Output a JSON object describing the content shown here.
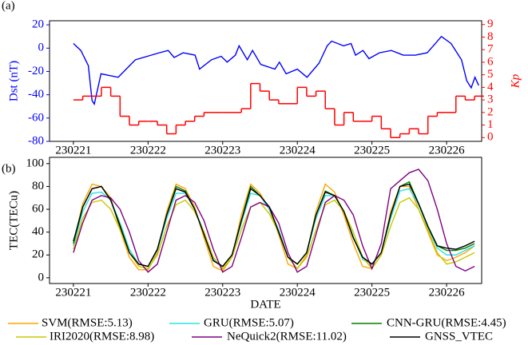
{
  "chart_data": [
    {
      "type": "line",
      "panel_label": "(a)",
      "ylabel": "Dst (nT)",
      "y2label": "Kp",
      "ycolor": "blue",
      "y2color": "red",
      "xlim": [
        230220.68,
        230226.47
      ],
      "xticks": [
        230221,
        230222,
        230223,
        230224,
        230225,
        230226
      ],
      "ylim": [
        -80,
        23.5
      ],
      "yticks": [
        -80,
        -60,
        -40,
        -20,
        0,
        20
      ],
      "y2lim": [
        -0.3,
        9.3
      ],
      "y2ticks": [
        0,
        1,
        2,
        3,
        4,
        5,
        6,
        7,
        8,
        9
      ],
      "series": [
        {
          "color": "blue",
          "x": [
            230221,
            230221.1,
            230221.2,
            230221.25,
            230221.28,
            230221.37,
            230221.6,
            230221.83,
            230222.15,
            230222.27,
            230222.35,
            230222.47,
            230222.63,
            230222.69,
            230222.85,
            230222.98,
            230223.06,
            230223.17,
            230223.22,
            230223.33,
            230223.4,
            230223.51,
            230223.7,
            230223.76,
            230223.85,
            230224,
            230224.13,
            230224.29,
            230224.4,
            230224.46,
            230224.62,
            230224.72,
            230224.78,
            230224.88,
            230224.96,
            230225.1,
            230225.26,
            230225.42,
            230225.58,
            230225.74,
            230225.85,
            230225.93,
            230226.06,
            230226.2,
            230226.27,
            230226.33,
            230226.38,
            230226.43
          ],
          "values": [
            4,
            -2,
            -15,
            -45,
            -48,
            -22,
            -25,
            -10,
            -4,
            -2,
            -8,
            -4,
            -6,
            -18,
            -10,
            -7,
            -12,
            -6,
            2,
            -10,
            -2,
            -14,
            -18,
            -12,
            -22,
            -18,
            -25,
            -13,
            2,
            6,
            2,
            4,
            -6,
            -2,
            -9,
            -4,
            -2,
            -6,
            -6,
            -4,
            4,
            10,
            4,
            -10,
            -28,
            -34,
            -25,
            -32
          ]
        },
        {
          "color": "red",
          "axis": "y2",
          "step": true,
          "x": [
            230221,
            230221.125,
            230221.25,
            230221.375,
            230221.5,
            230221.625,
            230221.75,
            230221.875,
            230222,
            230222.125,
            230222.25,
            230222.375,
            230222.5,
            230222.625,
            230222.75,
            230222.875,
            230223,
            230223.125,
            230223.25,
            230223.375,
            230223.5,
            230223.625,
            230223.75,
            230223.875,
            230224,
            230224.125,
            230224.25,
            230224.375,
            230224.5,
            230224.625,
            230224.75,
            230224.875,
            230225,
            230225.125,
            230225.25,
            230225.375,
            230225.5,
            230225.625,
            230225.75,
            230225.875,
            230226,
            230226.125,
            230226.25,
            230226.375
          ],
          "values": [
            3,
            3.3,
            3.3,
            4,
            3.3,
            1.7,
            1,
            1.3,
            1.3,
            1,
            0.3,
            1,
            1.3,
            1.7,
            2,
            2,
            2,
            2,
            2.3,
            4.3,
            3.7,
            3,
            2.7,
            2.7,
            4,
            3.3,
            3.7,
            2.3,
            1,
            2,
            1.3,
            1.3,
            1.7,
            0.7,
            0,
            0.3,
            0.7,
            0.3,
            1.7,
            2,
            2,
            3.3,
            3,
            3.3
          ]
        }
      ]
    },
    {
      "type": "line",
      "panel_label": "(b)",
      "xlabel": "DATE",
      "ylabel": "TEC(TECu)",
      "ycolor": "black",
      "legend": "bottom",
      "xlim": [
        230220.68,
        230226.47
      ],
      "xticks": [
        230221,
        230222,
        230223,
        230224,
        230225,
        230226
      ],
      "ylim": [
        -5,
        105.5
      ],
      "yticks": [
        0,
        20,
        40,
        60,
        80,
        100
      ],
      "x": [
        230221,
        230221.125,
        230221.25,
        230221.375,
        230221.5,
        230221.625,
        230221.75,
        230221.875,
        230222,
        230222.125,
        230222.25,
        230222.375,
        230222.5,
        230222.625,
        230222.75,
        230222.875,
        230223,
        230223.125,
        230223.25,
        230223.375,
        230223.5,
        230223.625,
        230223.75,
        230223.875,
        230224,
        230224.125,
        230224.25,
        230224.375,
        230224.5,
        230224.625,
        230224.75,
        230224.875,
        230225,
        230225.125,
        230225.25,
        230225.375,
        230225.5,
        230225.625,
        230225.75,
        230225.875,
        230226,
        230226.125,
        230226.25,
        230226.375
      ],
      "series": [
        {
          "name": "SVM(RMSE:5.13)",
          "color": "#ffa500",
          "values": [
            30,
            65,
            82,
            80,
            70,
            42,
            18,
            7,
            7,
            22,
            58,
            82,
            78,
            62,
            35,
            10,
            6,
            18,
            55,
            82,
            74,
            60,
            38,
            12,
            8,
            20,
            58,
            82,
            75,
            55,
            30,
            10,
            8,
            20,
            58,
            80,
            80,
            60,
            40,
            20,
            15,
            18,
            22,
            28
          ]
        },
        {
          "name": "GRU(RMSE:5.07)",
          "color": "#30e0e0",
          "values": [
            28,
            58,
            74,
            75,
            68,
            48,
            25,
            12,
            10,
            24,
            52,
            74,
            74,
            60,
            40,
            16,
            10,
            20,
            48,
            74,
            72,
            60,
            42,
            18,
            12,
            22,
            52,
            72,
            72,
            58,
            36,
            16,
            12,
            22,
            52,
            76,
            78,
            64,
            44,
            26,
            20,
            20,
            24,
            28
          ]
        },
        {
          "name": "CNN-GRU(RMSE:4.45)",
          "color": "#008000",
          "values": [
            30,
            62,
            78,
            80,
            68,
            46,
            22,
            12,
            10,
            25,
            55,
            80,
            76,
            60,
            38,
            15,
            10,
            20,
            50,
            80,
            72,
            62,
            40,
            18,
            12,
            22,
            55,
            76,
            72,
            58,
            35,
            18,
            12,
            22,
            55,
            80,
            84,
            65,
            45,
            28,
            24,
            24,
            26,
            30
          ]
        },
        {
          "name": "IRI2020(RMSE:8.98)",
          "color": "#c8c800",
          "values": [
            25,
            52,
            66,
            68,
            60,
            42,
            22,
            10,
            8,
            20,
            45,
            64,
            68,
            58,
            40,
            18,
            8,
            18,
            42,
            62,
            66,
            56,
            40,
            18,
            8,
            18,
            42,
            64,
            68,
            58,
            40,
            18,
            8,
            20,
            45,
            66,
            70,
            60,
            42,
            22,
            12,
            14,
            18,
            22
          ]
        },
        {
          "name": "NeQuick2(RMSE:11.02)",
          "color": "#800080",
          "values": [
            22,
            48,
            68,
            72,
            70,
            60,
            40,
            15,
            5,
            12,
            40,
            68,
            72,
            66,
            50,
            25,
            5,
            10,
            35,
            62,
            66,
            62,
            48,
            22,
            5,
            10,
            38,
            66,
            72,
            68,
            55,
            28,
            8,
            30,
            78,
            85,
            92,
            95,
            85,
            60,
            30,
            10,
            6,
            10
          ]
        },
        {
          "name": "GNSS_VTEC",
          "color": "#000000",
          "values": [
            32,
            62,
            78,
            80,
            68,
            45,
            22,
            12,
            10,
            25,
            55,
            78,
            75,
            60,
            38,
            15,
            10,
            20,
            50,
            78,
            72,
            62,
            40,
            18,
            12,
            22,
            55,
            75,
            72,
            58,
            35,
            18,
            12,
            22,
            55,
            80,
            82,
            65,
            45,
            28,
            26,
            25,
            28,
            32
          ]
        }
      ]
    }
  ]
}
